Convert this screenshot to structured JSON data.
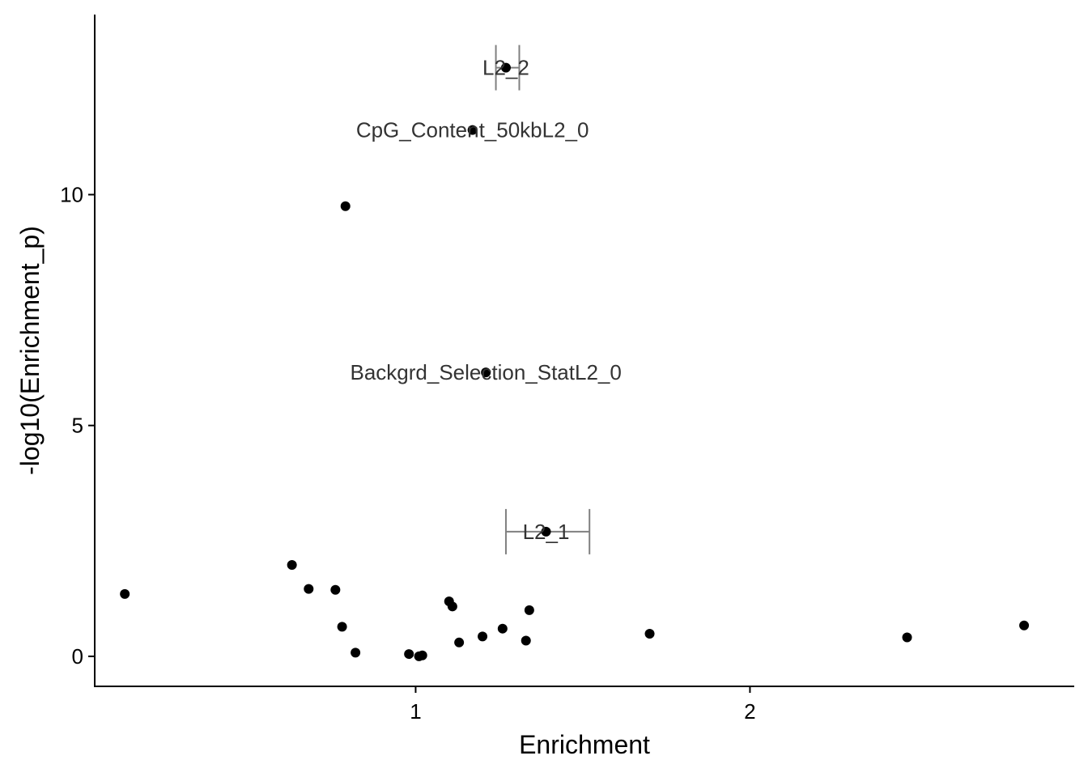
{
  "chart_data": {
    "type": "scatter",
    "xlabel": "Enrichment",
    "ylabel": "-log10(Enrichment_p)",
    "xlim": [
      0.04,
      2.97
    ],
    "ylim": [
      -0.65,
      13.9
    ],
    "x_ticks": [
      1,
      2
    ],
    "y_ticks": [
      0,
      5,
      10
    ],
    "x_tick_labels": [
      "1",
      "2"
    ],
    "y_tick_labels": [
      "0",
      "5",
      "10"
    ],
    "grid": false,
    "legend": "none",
    "colors": {
      "point": "#000000",
      "errorbar": "#808080",
      "label": "#333333",
      "axis": "#000000"
    },
    "points": [
      {
        "x": 0.13,
        "y": 1.35
      },
      {
        "x": 0.63,
        "y": 1.98
      },
      {
        "x": 0.68,
        "y": 1.46
      },
      {
        "x": 0.76,
        "y": 1.44
      },
      {
        "x": 0.78,
        "y": 0.64
      },
      {
        "x": 0.82,
        "y": 0.08
      },
      {
        "x": 0.79,
        "y": 9.75
      },
      {
        "x": 0.98,
        "y": 0.05
      },
      {
        "x": 1.01,
        "y": 0.0
      },
      {
        "x": 1.02,
        "y": 0.02
      },
      {
        "x": 1.1,
        "y": 1.19
      },
      {
        "x": 1.11,
        "y": 1.08
      },
      {
        "x": 1.13,
        "y": 0.3
      },
      {
        "x": 1.17,
        "y": 11.4
      },
      {
        "x": 1.2,
        "y": 0.43
      },
      {
        "x": 1.21,
        "y": 6.15
      },
      {
        "x": 1.26,
        "y": 0.6
      },
      {
        "x": 1.27,
        "y": 12.75
      },
      {
        "x": 1.33,
        "y": 0.34
      },
      {
        "x": 1.34,
        "y": 1.0
      },
      {
        "x": 1.39,
        "y": 2.7
      },
      {
        "x": 1.7,
        "y": 0.49
      },
      {
        "x": 2.47,
        "y": 0.41
      },
      {
        "x": 2.82,
        "y": 0.67
      }
    ],
    "error_bars": [
      {
        "y": 12.75,
        "x_low": 1.24,
        "x_high": 1.31
      },
      {
        "y": 2.7,
        "x_low": 1.27,
        "x_high": 1.52
      }
    ],
    "annotations": [
      {
        "text": "L2_2",
        "x": 1.27,
        "y": 12.75
      },
      {
        "text": "CpG_Content_50kbL2_0",
        "x": 1.17,
        "y": 11.4
      },
      {
        "text": "Backgrd_Selection_StatL2_0",
        "x": 1.21,
        "y": 6.15
      },
      {
        "text": "L2_1",
        "x": 1.39,
        "y": 2.7
      }
    ]
  }
}
